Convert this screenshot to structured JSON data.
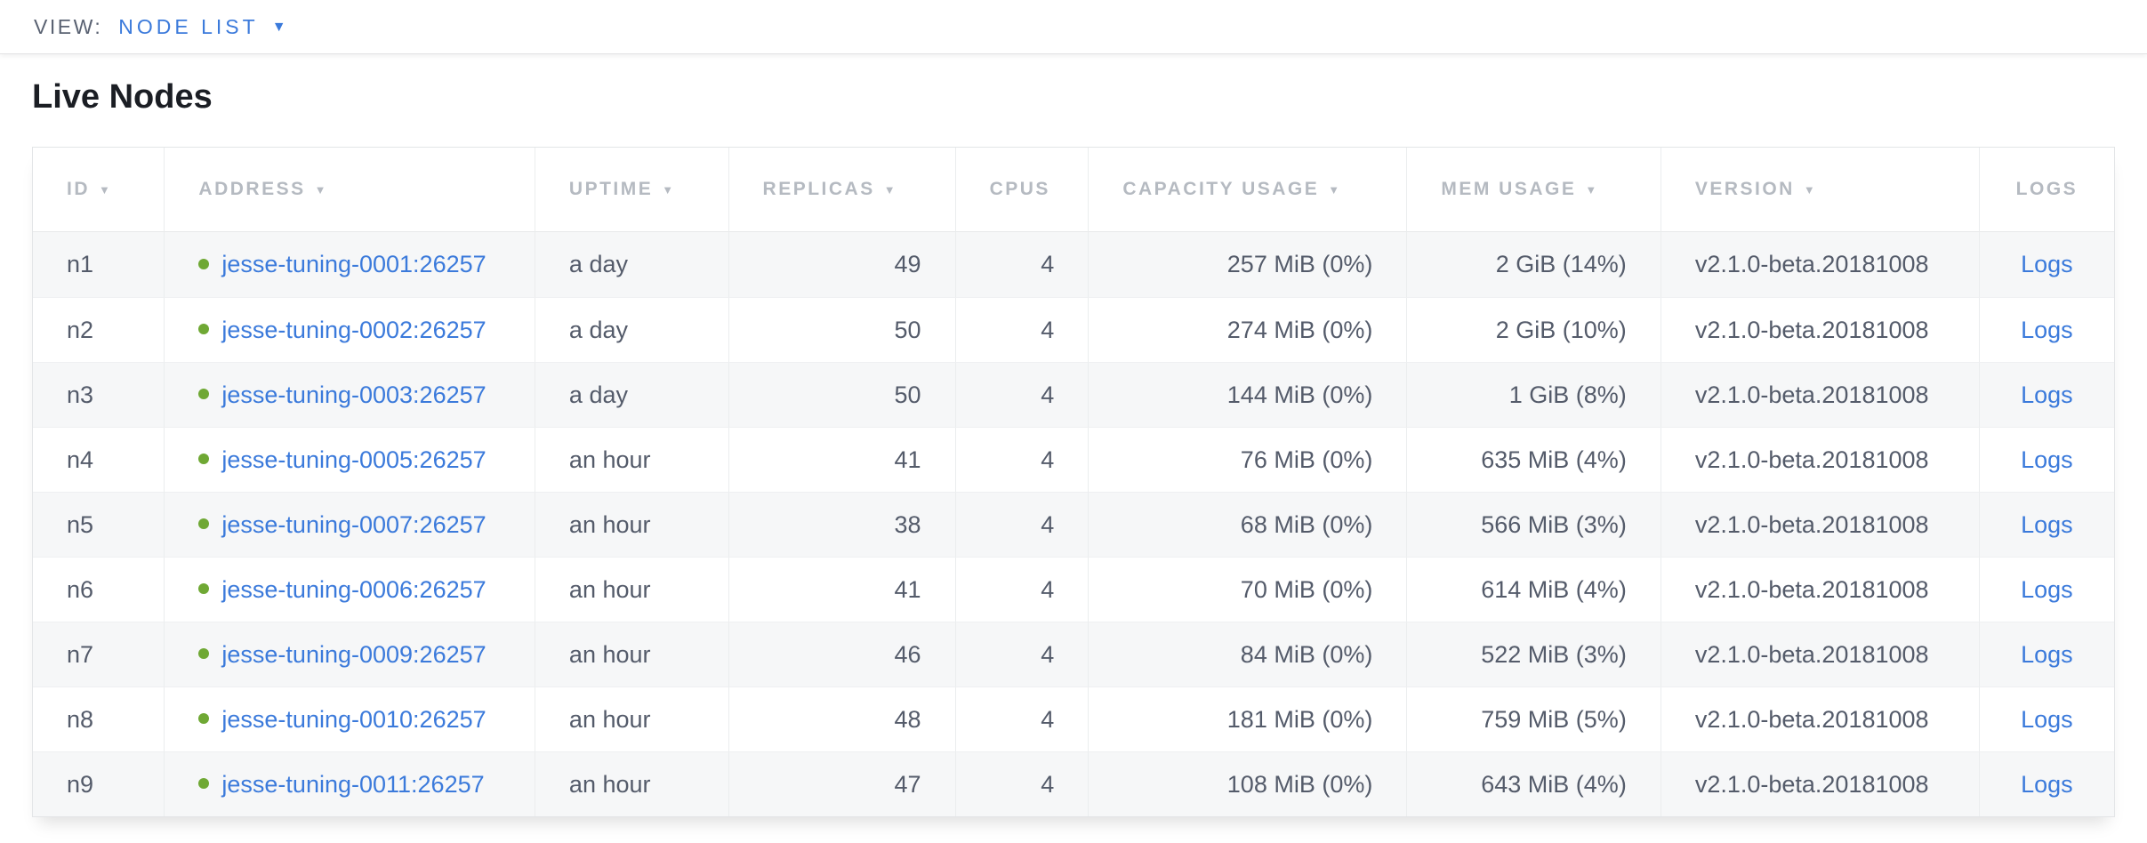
{
  "topbar": {
    "view_label": "VIEW:",
    "view_value": "NODE LIST"
  },
  "page": {
    "title": "Live Nodes"
  },
  "icons": {
    "sort_desc": "▼",
    "view_dropdown_caret": "▼"
  },
  "colors": {
    "link_blue": "#3B7ADB",
    "status_live_green": "#6FA834",
    "header_text_gray": "#B5BAC1",
    "body_text": "#545B6A",
    "title_text": "#1B1E24",
    "row_alt_bg": "#F6F7F8"
  },
  "table": {
    "columns": [
      {
        "key": "id",
        "label": "ID",
        "sortable": true
      },
      {
        "key": "address",
        "label": "ADDRESS",
        "sortable": true
      },
      {
        "key": "uptime",
        "label": "UPTIME",
        "sortable": true
      },
      {
        "key": "replicas",
        "label": "REPLICAS",
        "sortable": true
      },
      {
        "key": "cpus",
        "label": "CPUS",
        "sortable": false
      },
      {
        "key": "capacity_usage",
        "label": "CAPACITY USAGE",
        "sortable": true
      },
      {
        "key": "mem_usage",
        "label": "MEM USAGE",
        "sortable": true
      },
      {
        "key": "version",
        "label": "VERSION",
        "sortable": true
      },
      {
        "key": "logs",
        "label": "LOGS",
        "sortable": false
      }
    ],
    "rows": [
      {
        "id": "n1",
        "status": "live",
        "address": "jesse-tuning-0001:26257",
        "uptime": "a day",
        "replicas": "49",
        "cpus": "4",
        "capacity_usage": "257 MiB (0%)",
        "mem_usage": "2 GiB (14%)",
        "version": "v2.1.0-beta.20181008",
        "logs": "Logs"
      },
      {
        "id": "n2",
        "status": "live",
        "address": "jesse-tuning-0002:26257",
        "uptime": "a day",
        "replicas": "50",
        "cpus": "4",
        "capacity_usage": "274 MiB (0%)",
        "mem_usage": "2 GiB (10%)",
        "version": "v2.1.0-beta.20181008",
        "logs": "Logs"
      },
      {
        "id": "n3",
        "status": "live",
        "address": "jesse-tuning-0003:26257",
        "uptime": "a day",
        "replicas": "50",
        "cpus": "4",
        "capacity_usage": "144 MiB (0%)",
        "mem_usage": "1 GiB (8%)",
        "version": "v2.1.0-beta.20181008",
        "logs": "Logs"
      },
      {
        "id": "n4",
        "status": "live",
        "address": "jesse-tuning-0005:26257",
        "uptime": "an hour",
        "replicas": "41",
        "cpus": "4",
        "capacity_usage": "76 MiB (0%)",
        "mem_usage": "635 MiB (4%)",
        "version": "v2.1.0-beta.20181008",
        "logs": "Logs"
      },
      {
        "id": "n5",
        "status": "live",
        "address": "jesse-tuning-0007:26257",
        "uptime": "an hour",
        "replicas": "38",
        "cpus": "4",
        "capacity_usage": "68 MiB (0%)",
        "mem_usage": "566 MiB (3%)",
        "version": "v2.1.0-beta.20181008",
        "logs": "Logs"
      },
      {
        "id": "n6",
        "status": "live",
        "address": "jesse-tuning-0006:26257",
        "uptime": "an hour",
        "replicas": "41",
        "cpus": "4",
        "capacity_usage": "70 MiB (0%)",
        "mem_usage": "614 MiB (4%)",
        "version": "v2.1.0-beta.20181008",
        "logs": "Logs"
      },
      {
        "id": "n7",
        "status": "live",
        "address": "jesse-tuning-0009:26257",
        "uptime": "an hour",
        "replicas": "46",
        "cpus": "4",
        "capacity_usage": "84 MiB (0%)",
        "mem_usage": "522 MiB (3%)",
        "version": "v2.1.0-beta.20181008",
        "logs": "Logs"
      },
      {
        "id": "n8",
        "status": "live",
        "address": "jesse-tuning-0010:26257",
        "uptime": "an hour",
        "replicas": "48",
        "cpus": "4",
        "capacity_usage": "181 MiB (0%)",
        "mem_usage": "759 MiB (5%)",
        "version": "v2.1.0-beta.20181008",
        "logs": "Logs"
      },
      {
        "id": "n9",
        "status": "live",
        "address": "jesse-tuning-0011:26257",
        "uptime": "an hour",
        "replicas": "47",
        "cpus": "4",
        "capacity_usage": "108 MiB (0%)",
        "mem_usage": "643 MiB (4%)",
        "version": "v2.1.0-beta.20181008",
        "logs": "Logs"
      }
    ]
  }
}
